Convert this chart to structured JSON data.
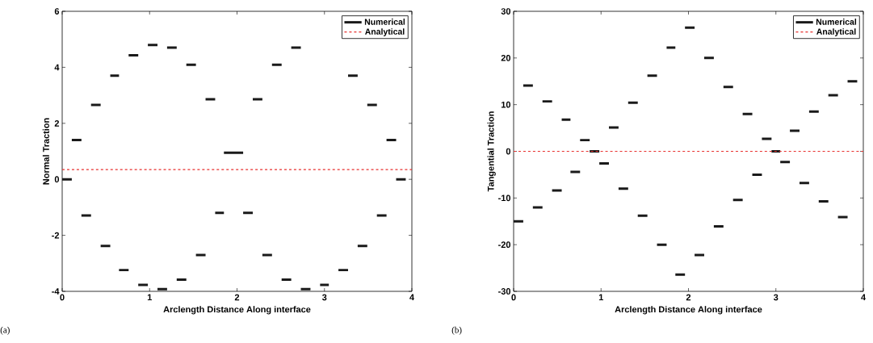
{
  "chart_data": [
    {
      "type": "line",
      "xlabel": "Arclength Distance Along interface",
      "ylabel": "Normal Traction",
      "annotations": [
        "(a)"
      ],
      "xlim": [
        0,
        4
      ],
      "ylim": [
        -4,
        6
      ],
      "xticks": [
        0,
        1,
        2,
        3,
        4
      ],
      "yticks": [
        -4,
        -2,
        0,
        2,
        4,
        6
      ],
      "legend": "top right",
      "series": [
        {
          "name": "Numerical",
          "color": "#1a1a1a",
          "line_style": "solid",
          "x": [
            0,
            0.11,
            null,
            0.11,
            0.22,
            null,
            0.22,
            0.33,
            null,
            0.33,
            0.44,
            null,
            0.44,
            0.55,
            null,
            0.55,
            0.65,
            null,
            0.65,
            0.76,
            null,
            0.76,
            0.87,
            null,
            0.87,
            0.98,
            null,
            0.98,
            1.09,
            null,
            1.09,
            1.2,
            null,
            1.2,
            1.31,
            null,
            1.31,
            1.42,
            null,
            1.42,
            1.53,
            null,
            1.53,
            1.64,
            null,
            1.64,
            1.75,
            null,
            1.75,
            1.85,
            null,
            1.85,
            1.96,
            null,
            1.96,
            2.07,
            null,
            2.07,
            2.18,
            null,
            2.18,
            2.29,
            null,
            2.29,
            2.4,
            null,
            2.4,
            2.51,
            null,
            2.51,
            2.62,
            null,
            2.62,
            2.73,
            null,
            2.73,
            2.84,
            null,
            2.95,
            3.05,
            null,
            3.16,
            3.27,
            null,
            3.27,
            3.38,
            null,
            3.38,
            3.49,
            null,
            3.49,
            3.6,
            null,
            3.6,
            3.71,
            null,
            3.71,
            3.82,
            null,
            3.82,
            3.93
          ],
          "values": [
            0,
            0,
            null,
            1.4,
            1.4,
            null,
            -1.29,
            -1.29,
            null,
            2.66,
            2.66,
            null,
            -2.38,
            -2.38,
            null,
            3.7,
            3.7,
            null,
            -3.24,
            -3.24,
            null,
            4.43,
            4.43,
            null,
            -3.77,
            -3.77,
            null,
            4.8,
            4.8,
            null,
            -3.92,
            -3.92,
            null,
            4.7,
            4.7,
            null,
            -3.58,
            -3.58,
            null,
            4.09,
            4.09,
            null,
            -2.7,
            -2.7,
            null,
            2.86,
            2.86,
            null,
            -1.2,
            -1.2,
            null,
            0.95,
            0.95,
            null,
            0.95,
            0.95,
            null,
            -1.2,
            -1.2,
            null,
            2.86,
            2.86,
            null,
            -2.7,
            -2.7,
            null,
            4.09,
            4.09,
            null,
            -3.58,
            -3.58,
            null,
            4.7,
            4.7,
            null,
            -3.92,
            -3.92,
            null,
            -3.77,
            -3.77,
            null,
            -3.24,
            -3.24,
            null,
            3.7,
            3.7,
            null,
            -2.38,
            -2.38,
            null,
            2.66,
            2.66,
            null,
            -1.29,
            -1.29,
            null,
            1.4,
            1.4,
            null,
            0,
            0
          ]
        },
        {
          "name": "Analytical",
          "color": "#e8312f",
          "line_style": "dashed",
          "x": [
            0,
            4
          ],
          "values": [
            0.35,
            0.35
          ]
        }
      ]
    },
    {
      "type": "line",
      "xlabel": "Arclength Distance Along interface",
      "ylabel": "Tangential Traction",
      "annotations": [
        "(b)"
      ],
      "xlim": [
        0,
        4
      ],
      "ylim": [
        -30,
        30
      ],
      "xticks": [
        0,
        1,
        2,
        3,
        4
      ],
      "yticks": [
        -30,
        -20,
        -10,
        0,
        10,
        20,
        30
      ],
      "legend": "top right",
      "series": [
        {
          "name": "Numerical",
          "color": "#1a1a1a",
          "line_style": "solid",
          "x": [
            0,
            0.11,
            null,
            0.11,
            0.22,
            null,
            0.22,
            0.33,
            null,
            0.33,
            0.44,
            null,
            0.44,
            0.55,
            null,
            0.55,
            0.65,
            null,
            0.65,
            0.76,
            null,
            0.76,
            0.87,
            null,
            0.87,
            0.98,
            null,
            0.98,
            1.09,
            null,
            1.09,
            1.2,
            null,
            1.2,
            1.31,
            null,
            1.31,
            1.42,
            null,
            1.42,
            1.53,
            null,
            1.53,
            1.64,
            null,
            1.64,
            1.75,
            null,
            1.75,
            1.85,
            null,
            1.85,
            1.96,
            null,
            1.96,
            2.07,
            null,
            2.07,
            2.18,
            null,
            2.18,
            2.29,
            null,
            2.29,
            2.4,
            null,
            2.4,
            2.51,
            null,
            2.51,
            2.62,
            null,
            2.62,
            2.73,
            null,
            2.73,
            2.84,
            null,
            2.84,
            2.95,
            null,
            2.95,
            3.05,
            null,
            3.05,
            3.16,
            null,
            3.16,
            3.27,
            null,
            3.27,
            3.38,
            null,
            3.38,
            3.49,
            null,
            3.49,
            3.6,
            null,
            3.6,
            3.71,
            null,
            3.71,
            3.82,
            null,
            3.82,
            3.93
          ],
          "values": [
            -15,
            -15,
            null,
            14.1,
            14.1,
            null,
            -12,
            -12,
            null,
            10.7,
            10.7,
            null,
            -8.4,
            -8.4,
            null,
            6.8,
            6.8,
            null,
            -4.4,
            -4.4,
            null,
            2.4,
            2.4,
            null,
            0,
            0,
            null,
            -2.6,
            -2.6,
            null,
            5.1,
            5.1,
            null,
            -8,
            -8,
            null,
            10.4,
            10.4,
            null,
            -13.8,
            -13.8,
            null,
            16.2,
            16.2,
            null,
            -20,
            -20,
            null,
            22.2,
            22.2,
            null,
            -26.4,
            -26.4,
            null,
            26.5,
            26.5,
            null,
            -22.2,
            -22.2,
            null,
            20,
            20,
            null,
            -16.1,
            -16.1,
            null,
            13.8,
            13.8,
            null,
            -10.4,
            -10.4,
            null,
            8,
            8,
            null,
            -5,
            -5,
            null,
            2.7,
            2.7,
            null,
            0,
            0,
            null,
            -2.3,
            -2.3,
            null,
            4.4,
            4.4,
            null,
            -6.8,
            -6.8,
            null,
            8.5,
            8.5,
            null,
            -10.7,
            -10.7,
            null,
            12,
            12,
            null,
            -14.1,
            -14.1,
            null,
            15,
            15
          ]
        },
        {
          "name": "Analytical",
          "color": "#e8312f",
          "line_style": "dashed",
          "x": [
            0,
            4
          ],
          "values": [
            0,
            0
          ]
        }
      ]
    }
  ]
}
